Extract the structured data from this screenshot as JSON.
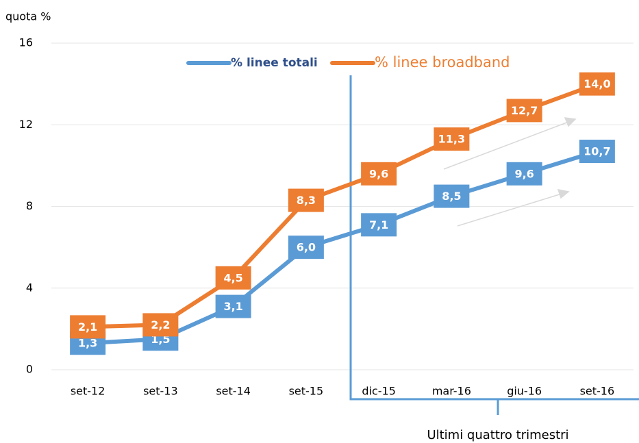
{
  "chart_data": {
    "type": "line",
    "y_label": "quota %",
    "categories": [
      "set-12",
      "set-13",
      "set-14",
      "set-15",
      "dic-15",
      "mar-16",
      "giu-16",
      "set-16"
    ],
    "series": [
      {
        "name": "% linee totali",
        "color": "#5b9bd5",
        "values": [
          1.3,
          1.5,
          3.1,
          6.0,
          7.1,
          8.5,
          9.6,
          10.7
        ],
        "value_labels": [
          "1,3",
          "1,5",
          "3,1",
          "6,0",
          "7,1",
          "8,5",
          "9,6",
          "10,7"
        ]
      },
      {
        "name": "% linee broadband",
        "color": "#ed7d31",
        "values": [
          2.1,
          2.2,
          4.5,
          8.3,
          9.6,
          11.3,
          12.7,
          14.0
        ],
        "value_labels": [
          "2,1",
          "2,2",
          "4,5",
          "8,3",
          "9,6",
          "11,3",
          "12,7",
          "14,0"
        ]
      }
    ],
    "ylim": [
      0,
      16
    ],
    "yticks": [
      0,
      4,
      8,
      12,
      16
    ],
    "grid": true,
    "annotation": "Ultimi quattro trimestri"
  }
}
